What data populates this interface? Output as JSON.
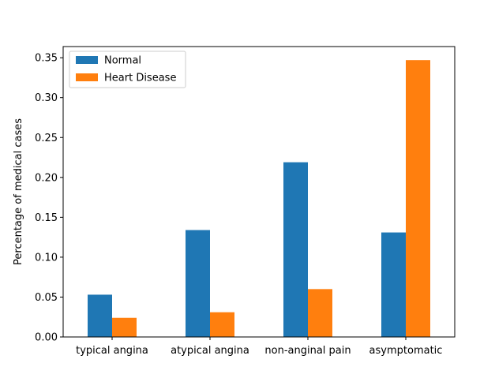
{
  "chart_data": {
    "type": "bar",
    "categories": [
      "typical angina",
      "atypical angina",
      "non-anginal pain",
      "asymptomatic"
    ],
    "series": [
      {
        "name": "Normal",
        "color": "#1f77b4",
        "values": [
          0.053,
          0.134,
          0.219,
          0.131
        ]
      },
      {
        "name": "Heart Disease",
        "color": "#ff7f0e",
        "values": [
          0.024,
          0.031,
          0.06,
          0.347
        ]
      }
    ],
    "title": "",
    "xlabel": "",
    "ylabel": "Percentage of medical cases",
    "ylim": [
      0,
      0.364
    ],
    "yticks": [
      0.0,
      0.05,
      0.1,
      0.15,
      0.2,
      0.25,
      0.3,
      0.35
    ],
    "ytick_labels": [
      "0.00",
      "0.05",
      "0.10",
      "0.15",
      "0.20",
      "0.25",
      "0.30",
      "0.35"
    ],
    "grid": false,
    "legend_position": "top-left"
  }
}
